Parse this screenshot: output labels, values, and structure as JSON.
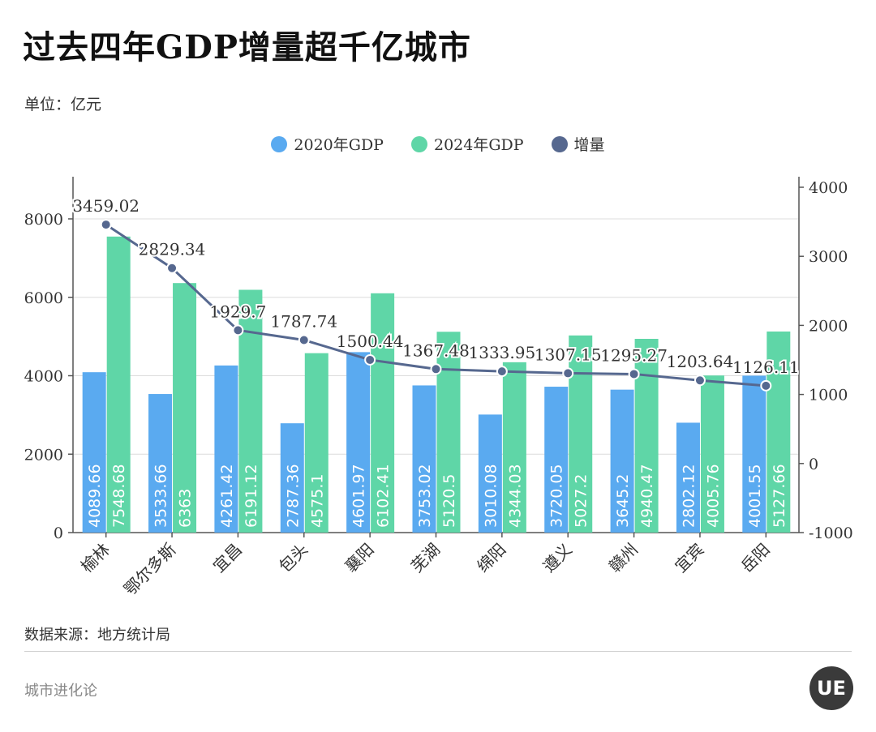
{
  "title": "过去四年GDP增量超千亿城市",
  "unit_label": "单位：亿元",
  "source_label": "数据来源：地方统计局",
  "brand_label": "城市进化论",
  "logo_text": "UE",
  "colors": {
    "gdp2020": "#5aaaf0",
    "gdp2024": "#5fd6a7",
    "increase": "#56688f"
  },
  "chart_data": {
    "type": "bar",
    "categories": [
      "榆林",
      "鄂尔多斯",
      "宜昌",
      "包头",
      "襄阳",
      "芜湖",
      "绵阳",
      "遵义",
      "赣州",
      "宜宾",
      "岳阳"
    ],
    "series": [
      {
        "name": "2020年GDP",
        "type": "bar",
        "axis": "left",
        "values": [
          4089.66,
          3533.66,
          4261.42,
          2787.36,
          4601.97,
          3753.02,
          3010.08,
          3720.05,
          3645.2,
          2802.12,
          4001.55
        ],
        "labels": [
          "4089.66",
          "3533.66",
          "4261.42",
          "2787.36",
          "4601.97",
          "3753.02",
          "3010.08",
          "3720.05",
          "3645.2",
          "2802.12",
          "4001.55"
        ]
      },
      {
        "name": "2024年GDP",
        "type": "bar",
        "axis": "left",
        "values": [
          7548.68,
          6363,
          6191.12,
          4575.1,
          6102.41,
          5120.5,
          4344.03,
          5027.2,
          4940.47,
          4005.76,
          5127.66
        ],
        "labels": [
          "7548.68",
          "6363",
          "6191.12",
          "4575.1",
          "6102.41",
          "5120.5",
          "4344.03",
          "5027.2",
          "4940.47",
          "4005.76",
          "5127.66"
        ]
      },
      {
        "name": "增量",
        "type": "line",
        "axis": "right",
        "values": [
          3459.02,
          2829.34,
          1929.7,
          1787.74,
          1500.44,
          1367.48,
          1333.95,
          1307.15,
          1295.27,
          1203.64,
          1126.11
        ],
        "labels": [
          "3459.02",
          "2829.34",
          "1929.7",
          "1787.74",
          "1500.44",
          "1367.48",
          "1333.95",
          "1307.15",
          "1295.27",
          "1203.64",
          "1126.11"
        ]
      }
    ],
    "y_left": {
      "min": 0,
      "max": 8000,
      "ticks": [
        0,
        2000,
        4000,
        6000,
        8000
      ],
      "tick_labels": [
        "0",
        "2000",
        "4000",
        "6000",
        "8000"
      ]
    },
    "y_right": {
      "min": -1000,
      "max": 4000,
      "ticks": [
        -1000,
        0,
        1000,
        2000,
        3000,
        4000
      ],
      "tick_labels": [
        "-1000",
        "0",
        "1000",
        "2000",
        "3000",
        "4000"
      ]
    },
    "grid": true,
    "legend_position": "top-center"
  }
}
